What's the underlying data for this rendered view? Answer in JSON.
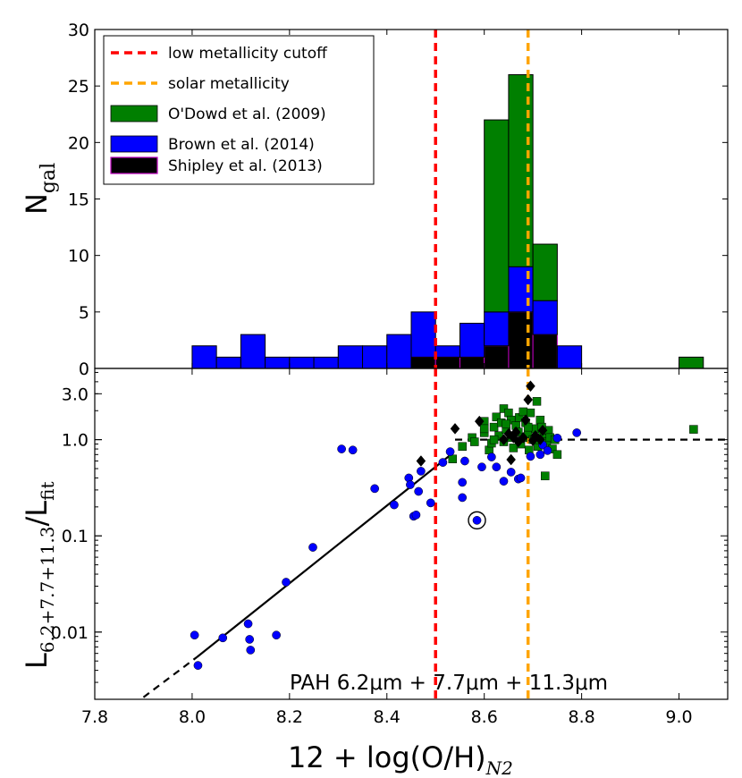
{
  "colors": {
    "odowd": "#007f00",
    "brown": "#0000ff",
    "shipley": "#000000",
    "shipley_edge": "#bf00bf",
    "low_cutoff": "#ff0000",
    "solar": "#ffa500"
  },
  "chart_data": [
    {
      "type": "bar",
      "title": "",
      "ylabel": {
        "main": "N",
        "sub": "gal"
      },
      "xlim": [
        7.8,
        9.1
      ],
      "ylim": [
        0,
        30
      ],
      "yticks": [
        0,
        5,
        10,
        15,
        20,
        25,
        30
      ],
      "bin_width": 0.05,
      "bin_starts": [
        8.0,
        8.05,
        8.1,
        8.15,
        8.2,
        8.25,
        8.3,
        8.35,
        8.4,
        8.45,
        8.5,
        8.55,
        8.6,
        8.65,
        8.7,
        8.75,
        9.0
      ],
      "series": [
        {
          "name": "Shipley et al. (2013)",
          "values": [
            0,
            0,
            0,
            0,
            0,
            0,
            0,
            0,
            0,
            1,
            1,
            1,
            2,
            5,
            3,
            0,
            0
          ]
        },
        {
          "name": "Brown et al. (2014)",
          "values": [
            2,
            1,
            3,
            1,
            1,
            1,
            2,
            2,
            3,
            4,
            1,
            3,
            3,
            4,
            3,
            2,
            0
          ]
        },
        {
          "name": "O'Dowd et al. (2009)",
          "values": [
            0,
            0,
            0,
            0,
            0,
            0,
            0,
            0,
            0,
            0,
            0,
            0,
            17,
            17,
            5,
            0,
            1
          ]
        }
      ],
      "reference_lines": [
        {
          "name": "low metallicity cutoff",
          "x": 8.5
        },
        {
          "name": "solar metallicity",
          "x": 8.69
        }
      ],
      "legend": {
        "placement": "top-left",
        "entries": [
          "low metallicity cutoff",
          "solar metallicity",
          "O'Dowd et al. (2009)",
          "Brown et al. (2014)",
          "Shipley et al. (2013)"
        ]
      }
    },
    {
      "type": "scatter",
      "xlabel": {
        "main": "12 + log(O/H)",
        "sub": "N2"
      },
      "ylabel": {
        "main": "L",
        "sub": "6.2+7.7+11.3",
        "tail": "/L",
        "sub2": "fit"
      },
      "xscale": "linear",
      "yscale": "log",
      "xlim": [
        7.8,
        9.1
      ],
      "ylim": [
        0.002,
        5.5
      ],
      "xticks": [
        7.8,
        8.0,
        8.2,
        8.4,
        8.6,
        8.8,
        9.0
      ],
      "xtick_labels": [
        "7.8",
        "8.0",
        "8.2",
        "8.4",
        "8.6",
        "8.8",
        "9.0"
      ],
      "yticks": [
        0.01,
        0.1,
        1.0,
        3.0
      ],
      "ytick_labels": [
        "0.01",
        "0.1",
        "1.0",
        "3.0"
      ],
      "annotation": "PAH 6.2μm + 7.7μm + 11.3μm",
      "fit_solid": {
        "x": [
          8.01,
          8.53
        ],
        "y": [
          0.0055,
          0.69
        ]
      },
      "fit_dashed_low": {
        "x": [
          7.9,
          8.01
        ],
        "y": [
          0.0021,
          0.0055
        ]
      },
      "fit_dashed_high": {
        "x": [
          8.54,
          9.1
        ],
        "y": [
          1.0,
          1.0
        ]
      },
      "reference_lines": [
        {
          "name": "low metallicity cutoff",
          "x": 8.5
        },
        {
          "name": "solar metallicity",
          "x": 8.69
        }
      ],
      "circled_point": {
        "x": 8.585,
        "y": 0.145
      },
      "series": [
        {
          "name": "Brown et al. (2014)",
          "points": [
            [
              8.005,
              0.0093
            ],
            [
              8.012,
              0.0045
            ],
            [
              8.063,
              0.0087
            ],
            [
              8.115,
              0.0122
            ],
            [
              8.118,
              0.0084
            ],
            [
              8.12,
              0.0065
            ],
            [
              8.173,
              0.0093
            ],
            [
              8.193,
              0.033
            ],
            [
              8.248,
              0.076
            ],
            [
              8.307,
              0.8
            ],
            [
              8.33,
              0.78
            ],
            [
              8.375,
              0.31
            ],
            [
              8.415,
              0.21
            ],
            [
              8.445,
              0.4
            ],
            [
              8.448,
              0.34
            ],
            [
              8.455,
              0.16
            ],
            [
              8.46,
              0.165
            ],
            [
              8.465,
              0.29
            ],
            [
              8.47,
              0.47
            ],
            [
              8.49,
              0.22
            ],
            [
              8.515,
              0.58
            ],
            [
              8.53,
              0.75
            ],
            [
              8.555,
              0.36
            ],
            [
              8.555,
              0.25
            ],
            [
              8.56,
              0.6
            ],
            [
              8.585,
              0.145
            ],
            [
              8.595,
              0.52
            ],
            [
              8.615,
              0.66
            ],
            [
              8.625,
              0.52
            ],
            [
              8.64,
              0.37
            ],
            [
              8.655,
              0.46
            ],
            [
              8.67,
              0.39
            ],
            [
              8.675,
              0.4
            ],
            [
              8.695,
              0.67
            ],
            [
              8.715,
              0.7
            ],
            [
              8.72,
              0.88
            ],
            [
              8.73,
              0.77
            ],
            [
              8.75,
              1.04
            ],
            [
              8.79,
              1.18
            ]
          ]
        },
        {
          "name": "O'Dowd et al. (2009)",
          "points": [
            [
              8.535,
              0.63
            ],
            [
              8.555,
              0.85
            ],
            [
              8.575,
              1.05
            ],
            [
              8.6,
              1.18
            ],
            [
              8.6,
              1.55
            ],
            [
              8.61,
              0.78
            ],
            [
              8.615,
              0.92
            ],
            [
              8.62,
              1.35
            ],
            [
              8.625,
              1.72
            ],
            [
              8.63,
              1.1
            ],
            [
              8.635,
              1.5
            ],
            [
              8.64,
              2.1
            ],
            [
              8.64,
              0.95
            ],
            [
              8.645,
              1.28
            ],
            [
              8.65,
              1.9
            ],
            [
              8.655,
              1.05
            ],
            [
              8.655,
              1.6
            ],
            [
              8.66,
              0.82
            ],
            [
              8.665,
              1.4
            ],
            [
              8.67,
              1.2
            ],
            [
              8.672,
              1.7
            ],
            [
              8.675,
              0.9
            ],
            [
              8.68,
              1.05
            ],
            [
              8.685,
              1.5
            ],
            [
              8.69,
              1.15
            ],
            [
              8.692,
              0.78
            ],
            [
              8.695,
              1.9
            ],
            [
              8.7,
              1.0
            ],
            [
              8.705,
              1.3
            ],
            [
              8.708,
              2.5
            ],
            [
              8.71,
              0.85
            ],
            [
              8.715,
              1.6
            ],
            [
              8.72,
              1.1
            ],
            [
              8.725,
              0.42
            ],
            [
              8.728,
              0.95
            ],
            [
              8.732,
              1.25
            ],
            [
              8.735,
              1.05
            ],
            [
              8.74,
              0.8
            ],
            [
              8.745,
              1.0
            ],
            [
              8.75,
              0.7
            ],
            [
              8.58,
              0.95
            ],
            [
              8.6,
              1.3
            ],
            [
              8.62,
              1.0
            ],
            [
              8.645,
              1.45
            ],
            [
              8.68,
              1.95
            ],
            [
              8.69,
              1.35
            ],
            [
              8.703,
              1.0
            ],
            [
              8.718,
              1.35
            ],
            [
              9.03,
              1.28
            ]
          ]
        },
        {
          "name": "Shipley et al. (2013)",
          "points": [
            [
              8.47,
              0.6
            ],
            [
              8.54,
              1.3
            ],
            [
              8.59,
              1.55
            ],
            [
              8.64,
              1.0
            ],
            [
              8.65,
              1.15
            ],
            [
              8.655,
              0.62
            ],
            [
              8.66,
              1.05
            ],
            [
              8.665,
              1.2
            ],
            [
              8.67,
              0.95
            ],
            [
              8.68,
              1.05
            ],
            [
              8.685,
              1.6
            ],
            [
              8.69,
              2.6
            ],
            [
              8.695,
              3.6
            ],
            [
              8.7,
              0.98
            ],
            [
              8.705,
              1.1
            ],
            [
              8.715,
              1.0
            ],
            [
              8.72,
              1.25
            ]
          ]
        }
      ]
    }
  ]
}
